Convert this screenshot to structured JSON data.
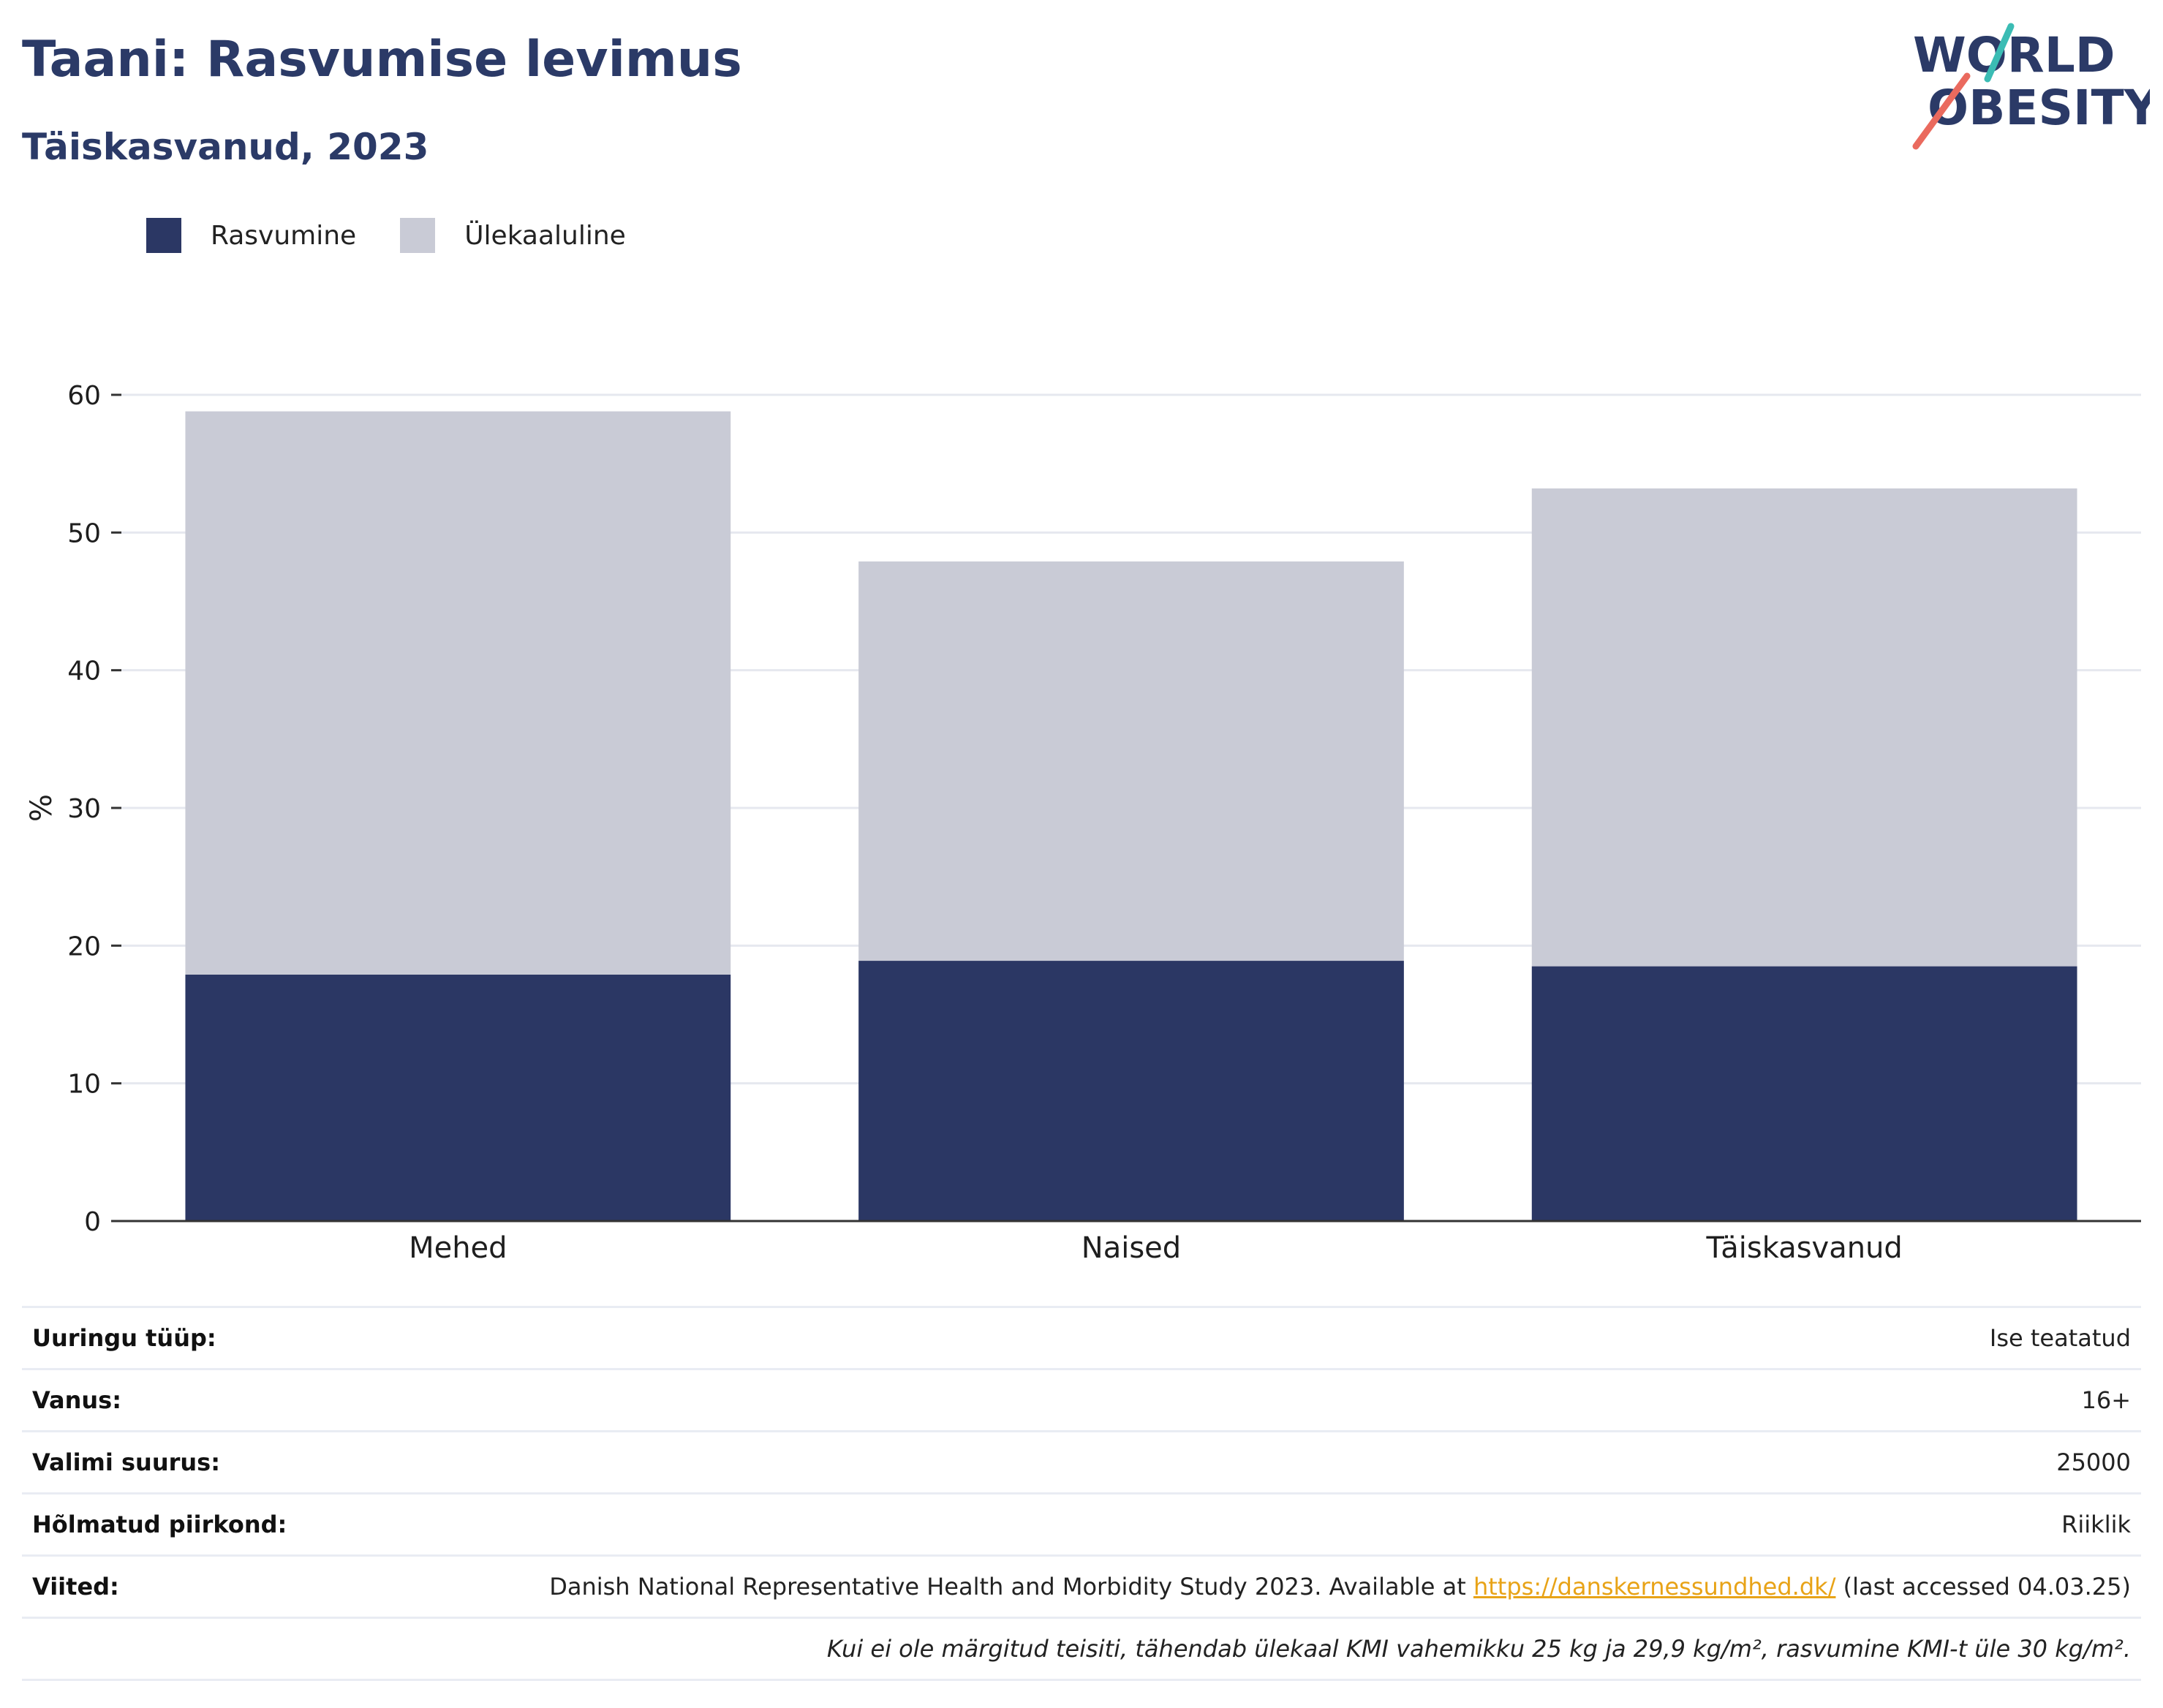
{
  "header": {
    "title": "Taani: Rasvumise levimus",
    "subtitle": "Täiskasvanud, 2023"
  },
  "logo": {
    "line1": "WORLD",
    "line2": "OBESITY"
  },
  "colors": {
    "obesity": "#2b3764",
    "overweight": "#c9cbd6",
    "title": "#2b3a67",
    "link": "#e8a317",
    "logo_teal": "#3bbcb4",
    "logo_coral": "#ea6a5e"
  },
  "chart_data": {
    "type": "bar",
    "stacked": true,
    "categories": [
      "Mehed",
      "Naised",
      "Täiskasvanud"
    ],
    "series": [
      {
        "name": "Rasvumine",
        "values": [
          17.9,
          18.9,
          18.5
        ]
      },
      {
        "name": "Ülekaaluline",
        "values": [
          40.9,
          29.0,
          34.7
        ]
      }
    ],
    "ylabel": "%",
    "ylim": [
      0,
      60
    ],
    "yticks": [
      0,
      10,
      20,
      30,
      40,
      50,
      60
    ],
    "grid": true,
    "legend_position": "top-left"
  },
  "info": {
    "survey_type": {
      "label": "Uuringu tüüp:",
      "value": "Ise teatatud"
    },
    "age": {
      "label": "Vanus:",
      "value": "16+"
    },
    "sample_size": {
      "label": "Valimi suurus:",
      "value": "25000"
    },
    "region": {
      "label": "Hõlmatud piirkond:",
      "value": "Riiklik"
    },
    "references": {
      "label": "Viited:",
      "text_before": "Danish National Representative Health and Morbidity Study 2023. Available at ",
      "link": "https://danskernessundhed.dk/",
      "text_after": " (last accessed 04.03.25)"
    },
    "note": "Kui ei ole märgitud teisiti, tähendab ülekaal KMI vahemikku 25 kg ja 29,9 kg/m², rasvumine KMI-t üle 30 kg/m²."
  }
}
